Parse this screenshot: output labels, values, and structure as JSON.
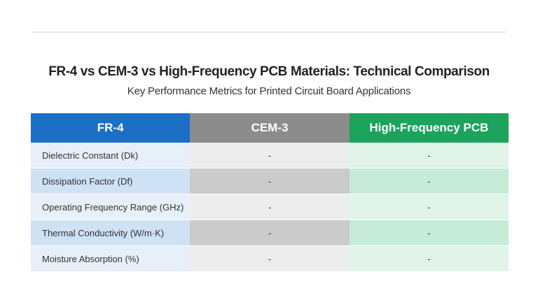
{
  "header": {
    "title": "FR-4 vs CEM-3 vs High-Frequency PCB Materials: Technical Comparison",
    "subtitle": "Key Performance Metrics for Printed Circuit Board Applications"
  },
  "table": {
    "columns": [
      "FR-4",
      "CEM-3",
      "High-Frequency PCB"
    ],
    "rows": [
      [
        "Dielectric Constant (Dk)",
        "-",
        "-"
      ],
      [
        "Dissipation Factor (Df)",
        "-",
        "-"
      ],
      [
        "Operating Frequency Range (GHz)",
        "-",
        "-"
      ],
      [
        "Thermal Conductivity (W/m·K)",
        "-",
        "-"
      ],
      [
        "Moisture Absorption (%)",
        "-",
        "-"
      ]
    ]
  }
}
